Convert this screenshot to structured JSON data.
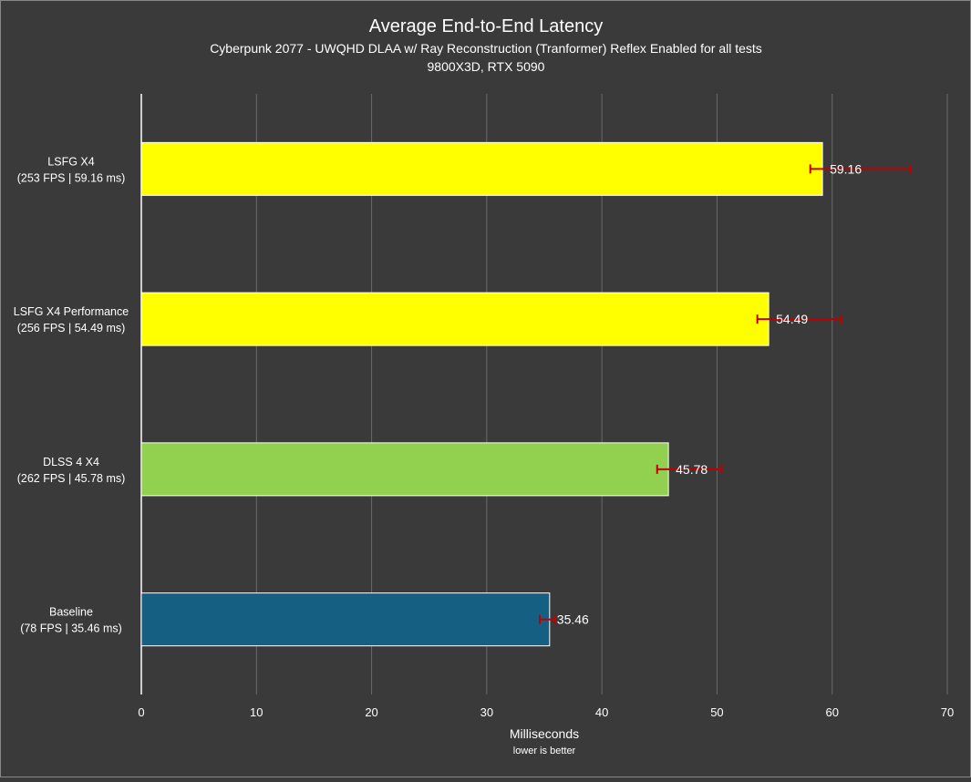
{
  "chart_data": {
    "type": "bar",
    "orientation": "horizontal",
    "title": "Average End-to-End Latency",
    "subtitle_line1": "Cyberpunk 2077 - UWQHD DLAA w/ Ray Reconstruction (Tranformer) Reflex Enabled for all tests",
    "subtitle_line2": "9800X3D, RTX 5090",
    "xlabel": "Milliseconds",
    "xlabel_note": "lower is better",
    "xlim": [
      0,
      70
    ],
    "xticks": [
      0,
      10,
      20,
      30,
      40,
      50,
      60,
      70
    ],
    "grid": true,
    "categories": [
      {
        "line1": "LSFG X4",
        "line2": "(253 FPS | 59.16 ms)",
        "value": 59.16,
        "label": "59.16",
        "err_low": 58.1,
        "err_high": 66.8,
        "color": "#ffff00"
      },
      {
        "line1": "LSFG X4 Performance",
        "line2": "(256 FPS | 54.49 ms)",
        "value": 54.49,
        "label": "54.49",
        "err_low": 53.5,
        "err_high": 60.8,
        "color": "#ffff00"
      },
      {
        "line1": "DLSS 4 X4",
        "line2": "(262 FPS | 45.78 ms)",
        "value": 45.78,
        "label": "45.78",
        "err_low": 44.8,
        "err_high": 50.4,
        "color": "#92d050"
      },
      {
        "line1": "Baseline",
        "line2": "(78 FPS | 35.46 ms)",
        "value": 35.46,
        "label": "35.46",
        "err_low": 34.6,
        "err_high": 35.9,
        "color": "#156082"
      }
    ],
    "errorbar_color": "#c00000"
  }
}
